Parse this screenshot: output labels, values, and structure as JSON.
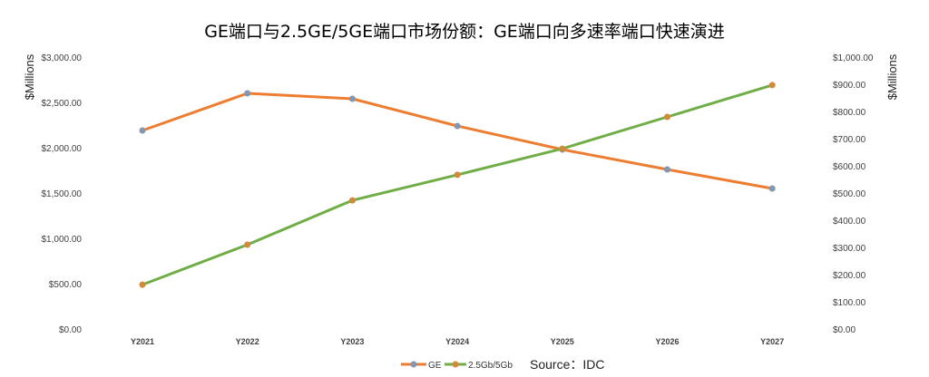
{
  "chart_data": {
    "type": "line",
    "title": "GE端口与2.5GE/5GE端口市场份额：GE端口向多速率端口快速演进",
    "ylabel": "$Millions",
    "y2label": "$Millions",
    "categories": [
      "Y2021",
      "Y2022",
      "Y2023",
      "Y2024",
      "Y2025",
      "Y2026",
      "Y2027"
    ],
    "ylim": [
      0,
      3000
    ],
    "y2lim": [
      0,
      1000
    ],
    "yticks": [
      "$0.00",
      "$500.00",
      "$1,000.00",
      "$1,500.00",
      "$2,000.00",
      "$2,500.00",
      "$3,000.00"
    ],
    "y2ticks": [
      "$0.00",
      "$100.00",
      "$200.00",
      "$300.00",
      "$400.00",
      "$500.00",
      "$600.00",
      "$700.00",
      "$800.00",
      "$900.00",
      "$1,000.00"
    ],
    "series": [
      {
        "name": "GE",
        "axis": "left",
        "color": "#ED7D31",
        "marker": "#8497B0",
        "values": [
          2190,
          2600,
          2540,
          2240,
          1980,
          1760,
          1550
        ]
      },
      {
        "name": "2.5Gb/5Gb",
        "axis": "right",
        "color": "#70AD47",
        "marker": "#D08A3A",
        "values": [
          163,
          310,
          473,
          567,
          663,
          780,
          897
        ]
      }
    ],
    "legend": "bottom",
    "source": "Source：IDC",
    "grid": false
  }
}
